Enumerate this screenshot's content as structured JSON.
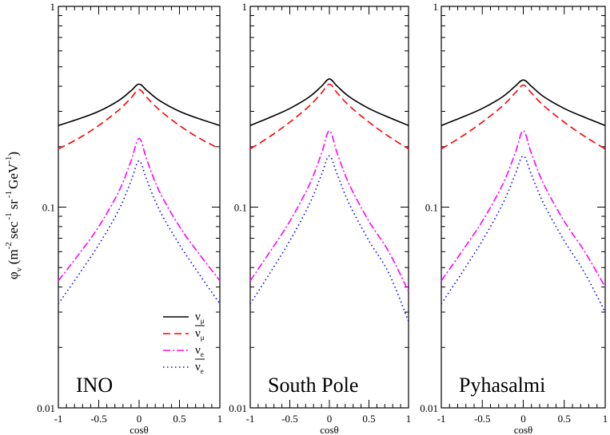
{
  "chart_data": [
    {
      "type": "line",
      "annotation": "INO",
      "xlabel": "cosθ",
      "ylabel": "",
      "xlim": [
        -1,
        1
      ],
      "ylim": [
        0.01,
        1
      ],
      "yscale": "log",
      "x_ticks": [
        "-1",
        "-0.5",
        "0",
        "0.5",
        "1"
      ],
      "y_ticks": [
        "0.01",
        "0.1",
        "1"
      ],
      "legend": {
        "placement": "lower-center"
      },
      "series": [
        {
          "name": "ν_μ",
          "color": "#000000",
          "dash": "solid",
          "x": [
            -1,
            -0.75,
            -0.5,
            -0.25,
            -0.1,
            0,
            0.1,
            0.25,
            0.5,
            0.75,
            1
          ],
          "values": [
            0.255,
            0.275,
            0.3,
            0.34,
            0.38,
            0.41,
            0.38,
            0.34,
            0.3,
            0.275,
            0.255
          ]
        },
        {
          "name": "ν̄_μ",
          "color": "#ff0000",
          "dash": "dashed",
          "x": [
            -1,
            -0.75,
            -0.5,
            -0.25,
            -0.1,
            0,
            0.1,
            0.25,
            0.5,
            0.75,
            1
          ],
          "values": [
            0.195,
            0.22,
            0.255,
            0.305,
            0.35,
            0.385,
            0.35,
            0.305,
            0.255,
            0.22,
            0.195
          ]
        },
        {
          "name": "ν_e",
          "color": "#ff00ff",
          "dash": "dashdot",
          "x": [
            -1,
            -0.75,
            -0.5,
            -0.25,
            -0.1,
            0,
            0.1,
            0.25,
            0.5,
            0.75,
            1
          ],
          "values": [
            0.043,
            0.058,
            0.08,
            0.12,
            0.17,
            0.22,
            0.17,
            0.12,
            0.08,
            0.058,
            0.043
          ]
        },
        {
          "name": "ν̄_e",
          "color": "#0000ff",
          "dash": "dotted",
          "x": [
            -1,
            -0.75,
            -0.5,
            -0.25,
            -0.1,
            0,
            0.1,
            0.25,
            0.5,
            0.75,
            1
          ],
          "values": [
            0.033,
            0.046,
            0.065,
            0.097,
            0.135,
            0.17,
            0.135,
            0.097,
            0.065,
            0.046,
            0.033
          ]
        }
      ]
    },
    {
      "type": "line",
      "annotation": "South Pole",
      "xlabel": "cosθ",
      "xlim": [
        -1,
        1
      ],
      "ylim": [
        0.01,
        1
      ],
      "yscale": "log",
      "x_ticks": [
        "-1",
        "-0.5",
        "0",
        "0.5",
        "1"
      ],
      "y_ticks": [
        "0.01",
        "0.1",
        "1"
      ],
      "series": [
        {
          "name": "ν_μ",
          "color": "#000000",
          "dash": "solid",
          "x": [
            -1,
            -0.75,
            -0.5,
            -0.25,
            -0.1,
            0,
            0.1,
            0.25,
            0.5,
            0.75,
            1
          ],
          "values": [
            0.255,
            0.28,
            0.31,
            0.355,
            0.4,
            0.435,
            0.4,
            0.355,
            0.31,
            0.28,
            0.255
          ]
        },
        {
          "name": "ν̄_μ",
          "color": "#ff0000",
          "dash": "dashed",
          "x": [
            -1,
            -0.75,
            -0.5,
            -0.25,
            -0.1,
            0,
            0.1,
            0.25,
            0.5,
            0.75,
            1
          ],
          "values": [
            0.195,
            0.225,
            0.265,
            0.32,
            0.37,
            0.41,
            0.37,
            0.32,
            0.265,
            0.225,
            0.195
          ]
        },
        {
          "name": "ν_e",
          "color": "#ff00ff",
          "dash": "dashdot",
          "x": [
            -1,
            -0.75,
            -0.5,
            -0.25,
            -0.1,
            0,
            0.1,
            0.25,
            0.5,
            0.75,
            1
          ],
          "values": [
            0.043,
            0.06,
            0.085,
            0.13,
            0.185,
            0.24,
            0.185,
            0.13,
            0.085,
            0.06,
            0.038
          ]
        },
        {
          "name": "ν̄_e",
          "color": "#0000ff",
          "dash": "dotted",
          "x": [
            -1,
            -0.75,
            -0.5,
            -0.25,
            -0.1,
            0,
            0.1,
            0.25,
            0.5,
            0.75,
            1
          ],
          "values": [
            0.033,
            0.047,
            0.068,
            0.104,
            0.145,
            0.18,
            0.145,
            0.104,
            0.068,
            0.047,
            0.027
          ]
        }
      ]
    },
    {
      "type": "line",
      "annotation": "Pyhasalmi",
      "xlabel": "cosθ",
      "xlim": [
        -1,
        1
      ],
      "ylim": [
        0.01,
        1
      ],
      "yscale": "log",
      "x_ticks": [
        "-1",
        "-0.5",
        "0",
        "0.5",
        "1"
      ],
      "y_ticks": [
        "0.01",
        "0.1",
        "1"
      ],
      "series": [
        {
          "name": "ν_μ",
          "color": "#000000",
          "dash": "solid",
          "x": [
            -1,
            -0.75,
            -0.5,
            -0.25,
            -0.1,
            0,
            0.1,
            0.25,
            0.5,
            0.75,
            1
          ],
          "values": [
            0.255,
            0.28,
            0.31,
            0.355,
            0.4,
            0.43,
            0.4,
            0.355,
            0.31,
            0.28,
            0.255
          ]
        },
        {
          "name": "ν̄_μ",
          "color": "#ff0000",
          "dash": "dashed",
          "x": [
            -1,
            -0.75,
            -0.5,
            -0.25,
            -0.1,
            0,
            0.1,
            0.25,
            0.5,
            0.75,
            1
          ],
          "values": [
            0.195,
            0.225,
            0.265,
            0.32,
            0.37,
            0.405,
            0.37,
            0.32,
            0.265,
            0.225,
            0.195
          ]
        },
        {
          "name": "ν_e",
          "color": "#ff00ff",
          "dash": "dashdot",
          "x": [
            -1,
            -0.75,
            -0.5,
            -0.25,
            -0.1,
            0,
            0.1,
            0.25,
            0.5,
            0.75,
            1
          ],
          "values": [
            0.043,
            0.06,
            0.085,
            0.13,
            0.185,
            0.24,
            0.185,
            0.13,
            0.085,
            0.06,
            0.04
          ]
        },
        {
          "name": "ν̄_e",
          "color": "#0000ff",
          "dash": "dotted",
          "x": [
            -1,
            -0.75,
            -0.5,
            -0.25,
            -0.1,
            0,
            0.1,
            0.25,
            0.5,
            0.75,
            1
          ],
          "values": [
            0.033,
            0.047,
            0.068,
            0.104,
            0.145,
            0.18,
            0.145,
            0.104,
            0.068,
            0.047,
            0.03
          ]
        }
      ]
    }
  ],
  "ylabel_parts": {
    "phi": "φ",
    "nu_sub": "ν",
    "open": "(m",
    "exp_m": "-2",
    "sec": "sec",
    "exp_sec": "-1",
    "sr": "sr",
    "exp_sr": "-1",
    "gev": "GeV",
    "exp_gev": "-1",
    "close": ")"
  },
  "legend_labels": [
    {
      "main": "ν",
      "sub": "μ",
      "bar": false
    },
    {
      "main": "ν",
      "sub": "μ",
      "bar": true
    },
    {
      "main": "ν",
      "sub": "e",
      "bar": false
    },
    {
      "main": "ν",
      "sub": "e",
      "bar": true
    }
  ]
}
